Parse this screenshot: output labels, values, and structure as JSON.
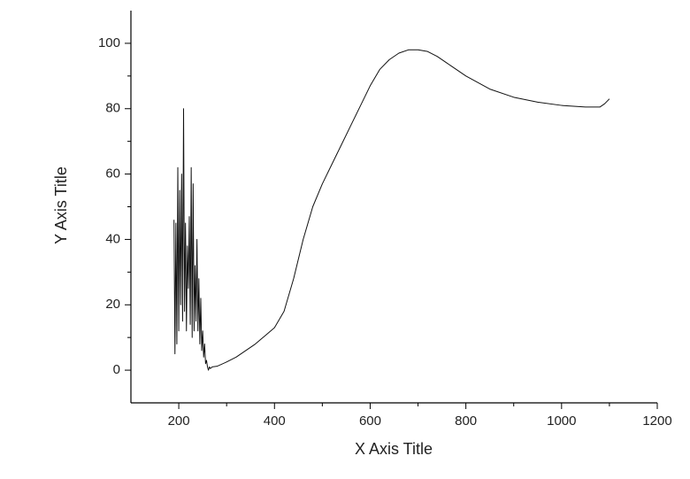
{
  "chart_data": {
    "type": "line",
    "x_label": "X Axis Title",
    "y_label": "Y Axis Title",
    "xlim": [
      100,
      1200
    ],
    "xticks": [
      200,
      400,
      600,
      800,
      1000,
      1200
    ],
    "ylim": [
      -10,
      110
    ],
    "yticks": [
      0,
      20,
      40,
      60,
      80,
      100
    ],
    "grid": false,
    "series": [
      {
        "color": "#111111",
        "x": [
          190,
          192,
          194,
          196,
          198,
          200,
          202,
          204,
          206,
          208,
          210,
          212,
          214,
          216,
          218,
          220,
          222,
          224,
          226,
          228,
          230,
          232,
          234,
          236,
          238,
          240,
          242,
          244,
          246,
          248,
          250,
          252,
          254,
          256,
          258,
          260,
          262,
          264,
          266,
          270,
          280,
          300,
          320,
          340,
          360,
          380,
          400,
          420,
          440,
          460,
          480,
          500,
          520,
          540,
          560,
          580,
          600,
          620,
          640,
          660,
          680,
          700,
          720,
          740,
          760,
          780,
          800,
          850,
          900,
          950,
          1000,
          1050,
          1080,
          1090,
          1100
        ],
        "values": [
          46,
          5,
          45,
          8,
          62,
          12,
          55,
          20,
          60,
          15,
          80,
          18,
          45,
          12,
          38,
          25,
          47,
          14,
          62,
          10,
          57,
          12,
          32,
          15,
          40,
          12,
          28,
          8,
          22,
          6,
          12,
          4,
          8,
          2,
          3,
          1,
          0,
          1,
          0.5,
          1,
          1.2,
          2.5,
          4,
          6,
          8,
          10.5,
          13,
          18,
          28,
          40,
          50,
          57,
          63,
          69,
          75,
          81,
          87,
          92,
          95,
          97,
          98,
          98,
          97.5,
          96,
          94,
          92,
          90,
          86,
          83.5,
          82,
          81,
          80.5,
          80.5,
          81.5,
          83
        ]
      }
    ]
  }
}
